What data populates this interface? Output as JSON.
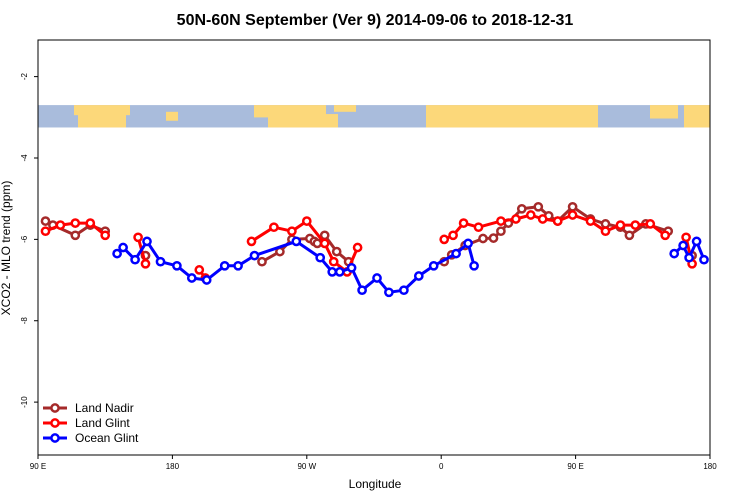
{
  "chart_data": {
    "type": "line",
    "title": "50N-60N September (Ver 9)   2014-09-06 to 2018-12-31",
    "xlabel": "Longitude",
    "ylabel": "XCO2 - MLO trend (ppm)",
    "xlim": [
      90,
      540
    ],
    "ylim": [
      -11.3,
      -1.1
    ],
    "x_ticks": [
      {
        "value": 90,
        "label": "90 E"
      },
      {
        "value": 180,
        "label": "180"
      },
      {
        "value": 270,
        "label": "90 W"
      },
      {
        "value": 360,
        "label": "0"
      },
      {
        "value": 450,
        "label": "90 E"
      },
      {
        "value": 540,
        "label": "180"
      }
    ],
    "y_ticks": [
      {
        "value": -2,
        "label": "-2"
      },
      {
        "value": -4,
        "label": "-4"
      },
      {
        "value": -6,
        "label": "-6"
      },
      {
        "value": -8,
        "label": "-8"
      },
      {
        "value": -10,
        "label": "-10"
      }
    ],
    "map_strip": {
      "ymin": -3.25,
      "ymax": -2.7,
      "ocean_color": "#a9bcdc",
      "land_color": "#fcd87a"
    },
    "legend_position": "bottom-left",
    "series": [
      {
        "name": "Land Nadir",
        "color": "#a52a2a",
        "segments": [
          [
            [
              95,
              -5.55
            ],
            [
              100,
              -5.65
            ],
            [
              115,
              -5.9
            ],
            [
              125,
              -5.65
            ],
            [
              135,
              -5.8
            ]
          ],
          [
            [
              162,
              -6.4
            ]
          ],
          [
            [
              240,
              -6.55
            ],
            [
              252,
              -6.3
            ],
            [
              260,
              -6.0
            ],
            [
              272,
              -5.98
            ],
            [
              275,
              -6.05
            ],
            [
              277,
              -6.1
            ],
            [
              282,
              -5.9
            ],
            [
              290,
              -6.3
            ],
            [
              298,
              -6.55
            ]
          ],
          [
            [
              362,
              -6.55
            ],
            [
              367,
              -6.38
            ],
            [
              376,
              -6.15
            ],
            [
              388,
              -5.98
            ],
            [
              395,
              -5.97
            ],
            [
              400,
              -5.8
            ],
            [
              405,
              -5.6
            ],
            [
              414,
              -5.25
            ],
            [
              425,
              -5.2
            ],
            [
              432,
              -5.42
            ],
            [
              438,
              -5.55
            ],
            [
              448,
              -5.2
            ],
            [
              460,
              -5.5
            ],
            [
              470,
              -5.62
            ],
            [
              480,
              -5.7
            ],
            [
              486,
              -5.9
            ],
            [
              497,
              -5.62
            ],
            [
              512,
              -5.8
            ]
          ],
          [
            [
              528,
              -6.4
            ]
          ]
        ]
      },
      {
        "name": "Land Glint",
        "color": "#ff0000",
        "segments": [
          [
            [
              95,
              -5.8
            ],
            [
              105,
              -5.65
            ],
            [
              115,
              -5.6
            ],
            [
              125,
              -5.6
            ],
            [
              135,
              -5.9
            ]
          ],
          [
            [
              157,
              -5.95
            ],
            [
              162,
              -6.6
            ]
          ],
          [
            [
              198,
              -6.75
            ],
            [
              202,
              -6.95
            ]
          ],
          [
            [
              233,
              -6.05
            ],
            [
              248,
              -5.7
            ],
            [
              260,
              -5.8
            ],
            [
              270,
              -5.55
            ],
            [
              282,
              -6.1
            ],
            [
              288,
              -6.55
            ],
            [
              297,
              -6.8
            ],
            [
              304,
              -6.2
            ]
          ],
          [
            [
              362,
              -6.0
            ],
            [
              368,
              -5.9
            ],
            [
              375,
              -5.6
            ],
            [
              385,
              -5.7
            ],
            [
              400,
              -5.55
            ],
            [
              410,
              -5.5
            ],
            [
              420,
              -5.4
            ],
            [
              428,
              -5.5
            ],
            [
              438,
              -5.55
            ],
            [
              448,
              -5.4
            ],
            [
              460,
              -5.55
            ],
            [
              470,
              -5.8
            ],
            [
              480,
              -5.65
            ],
            [
              490,
              -5.65
            ],
            [
              500,
              -5.62
            ],
            [
              510,
              -5.9
            ]
          ],
          [
            [
              524,
              -5.95
            ],
            [
              528,
              -6.6
            ]
          ]
        ]
      },
      {
        "name": "Ocean Glint",
        "color": "#0000ff",
        "segments": [
          [
            [
              143,
              -6.35
            ],
            [
              147,
              -6.2
            ],
            [
              155,
              -6.5
            ],
            [
              163,
              -6.05
            ],
            [
              172,
              -6.55
            ],
            [
              183,
              -6.65
            ],
            [
              193,
              -6.95
            ],
            [
              203,
              -7.0
            ],
            [
              215,
              -6.65
            ],
            [
              224,
              -6.65
            ],
            [
              235,
              -6.4
            ],
            [
              263,
              -6.05
            ],
            [
              279,
              -6.45
            ],
            [
              287,
              -6.8
            ],
            [
              292,
              -6.8
            ],
            [
              300,
              -6.7
            ],
            [
              307,
              -7.25
            ],
            [
              317,
              -6.95
            ],
            [
              325,
              -7.3
            ],
            [
              335,
              -7.25
            ],
            [
              345,
              -6.9
            ],
            [
              355,
              -6.65
            ],
            [
              370,
              -6.35
            ],
            [
              378,
              -6.1
            ],
            [
              382,
              -6.65
            ]
          ],
          [
            [
              516,
              -6.35
            ],
            [
              522,
              -6.15
            ],
            [
              526,
              -6.45
            ],
            [
              531,
              -6.05
            ],
            [
              536,
              -6.5
            ]
          ]
        ]
      }
    ]
  }
}
